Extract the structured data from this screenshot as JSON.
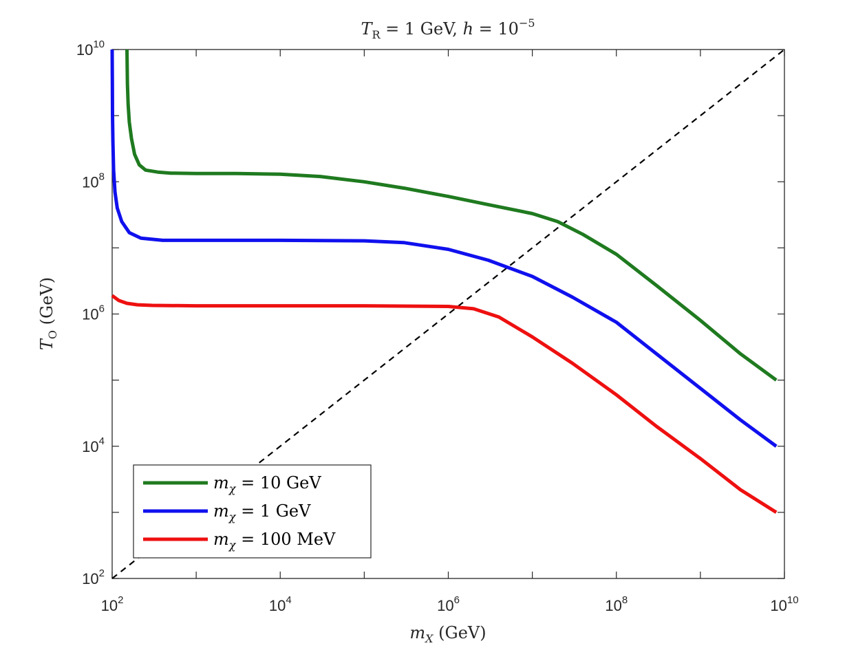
{
  "chart_data": {
    "type": "line",
    "title": {
      "var": "T",
      "var_sub": "R",
      "eq": " = 1 GeV, ",
      "var2": "h",
      "eq2": " = 10",
      "exp": "−5"
    },
    "xlabel": {
      "var": "m",
      "sub": "X",
      "unit": " (GeV)"
    },
    "ylabel": {
      "var": "T",
      "sub": "O",
      "unit": " (GeV)"
    },
    "xscale": "log",
    "yscale": "log",
    "xlim": [
      100,
      10000000000
    ],
    "ylim": [
      100,
      10000000000
    ],
    "xticks": [
      {
        "value": 100,
        "base": "10",
        "exp": "2"
      },
      {
        "value": 10000,
        "base": "10",
        "exp": "4"
      },
      {
        "value": 1000000,
        "base": "10",
        "exp": "6"
      },
      {
        "value": 100000000,
        "base": "10",
        "exp": "8"
      },
      {
        "value": 10000000000,
        "base": "10",
        "exp": "10"
      }
    ],
    "yticks": [
      {
        "value": 100,
        "base": "10",
        "exp": "2"
      },
      {
        "value": 10000,
        "base": "10",
        "exp": "4"
      },
      {
        "value": 1000000,
        "base": "10",
        "exp": "6"
      },
      {
        "value": 100000000,
        "base": "10",
        "exp": "8"
      },
      {
        "value": 10000000000,
        "base": "10",
        "exp": "10"
      }
    ],
    "legend_position": "bottom-left",
    "series": [
      {
        "name": "m_chi = 10 GeV",
        "legend_var": "m",
        "legend_sub": "χ",
        "legend_rest": " = 10 GeV",
        "color": "#1f7a1f",
        "x": [
          150,
          152,
          155,
          160,
          170,
          185,
          210,
          250,
          350,
          500,
          1000,
          3000,
          10000,
          30000,
          100000,
          300000,
          1000000,
          3000000,
          10000000,
          20000000,
          40000000,
          100000000,
          300000000,
          1000000000,
          3000000000,
          8000000000
        ],
        "y": [
          10000000000,
          3000000000,
          1500000000,
          800000000,
          450000000,
          260000000,
          180000000,
          150000000,
          140000000,
          135000000,
          133000000,
          133000000,
          130000000,
          120000000,
          100000000,
          80000000,
          60000000,
          45000000,
          33000000,
          25000000,
          16000000,
          8000000,
          2700000,
          800000,
          250000,
          100000
        ]
      },
      {
        "name": "m_chi = 1 GeV",
        "legend_var": "m",
        "legend_sub": "χ",
        "legend_rest": " = 1 GeV",
        "color": "#1010ee",
        "x": [
          100,
          100.5,
          101,
          102,
          104,
          108,
          115,
          130,
          160,
          220,
          400,
          1000,
          10000,
          100000,
          300000,
          1000000,
          3000000,
          10000000,
          30000000,
          100000000,
          300000000,
          1000000000,
          3000000000,
          8000000000
        ],
        "y": [
          10000000000,
          3000000000,
          1000000000,
          400000000,
          150000000,
          70000000,
          40000000,
          25000000,
          17000000,
          14000000,
          13000000,
          13000000,
          13000000,
          12800000,
          12000000,
          9500000,
          6500000,
          3700000,
          1800000,
          750000,
          250000,
          75000,
          25000,
          10000
        ]
      },
      {
        "name": "m_chi = 100 MeV",
        "legend_var": "m",
        "legend_sub": "χ",
        "legend_rest": " = 100 MeV",
        "color": "#ee1010",
        "x": [
          100,
          120,
          150,
          200,
          300,
          1000,
          10000,
          100000,
          1000000,
          2000000,
          4000000,
          10000000,
          30000000,
          100000000,
          300000000,
          1000000000,
          3000000000,
          8000000000
        ],
        "y": [
          1900000,
          1600000,
          1450000,
          1380000,
          1350000,
          1330000,
          1330000,
          1330000,
          1300000,
          1200000,
          900000,
          450000,
          180000,
          60000,
          20000,
          6500,
          2200,
          1000
        ]
      }
    ],
    "reference_line": {
      "name": "T_O = m_X",
      "style": "dashed",
      "color": "#000000",
      "x": [
        100,
        10000000000
      ],
      "y": [
        100,
        10000000000
      ]
    }
  }
}
